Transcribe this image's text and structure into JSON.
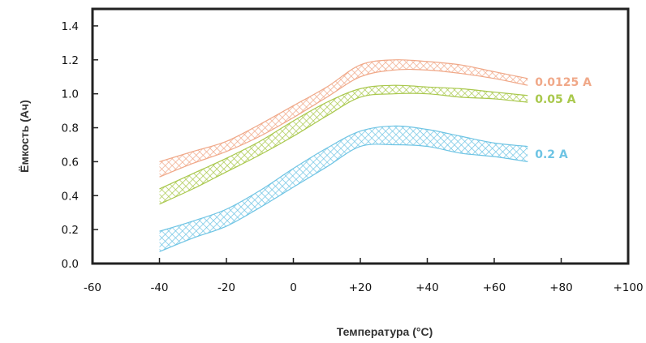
{
  "chart_data": {
    "type": "area",
    "title": "",
    "xlabel": "Температура (°C)",
    "ylabel": "Ёмкость (Ач)",
    "xlim": [
      -60,
      100
    ],
    "ylim": [
      0,
      1.5
    ],
    "x_ticks": [
      "-60",
      "-40",
      "-20",
      "0",
      "+20",
      "+40",
      "+60",
      "+80",
      "+100"
    ],
    "y_ticks": [
      "0.0",
      "0.2",
      "0.4",
      "0.6",
      "0.8",
      "1.0",
      "1.2",
      "1.4"
    ],
    "grid": false,
    "x": [
      -40,
      -30,
      -20,
      -10,
      0,
      10,
      20,
      30,
      40,
      50,
      60,
      70
    ],
    "series": [
      {
        "name": "0.0125 A",
        "color": "#f0a888",
        "lower": [
          0.51,
          0.59,
          0.66,
          0.75,
          0.86,
          0.98,
          1.1,
          1.14,
          1.14,
          1.12,
          1.09,
          1.05
        ],
        "upper": [
          0.6,
          0.66,
          0.72,
          0.82,
          0.93,
          1.04,
          1.17,
          1.2,
          1.19,
          1.17,
          1.13,
          1.09
        ]
      },
      {
        "name": "0.05 A",
        "color": "#a9c84c",
        "lower": [
          0.35,
          0.44,
          0.54,
          0.64,
          0.75,
          0.87,
          0.98,
          1.0,
          1.0,
          0.98,
          0.97,
          0.95
        ],
        "upper": [
          0.44,
          0.53,
          0.62,
          0.72,
          0.84,
          0.95,
          1.03,
          1.05,
          1.04,
          1.03,
          1.01,
          0.99
        ]
      },
      {
        "name": "0.2 A",
        "color": "#6ec4e4",
        "lower": [
          0.07,
          0.15,
          0.22,
          0.33,
          0.45,
          0.57,
          0.69,
          0.7,
          0.69,
          0.65,
          0.63,
          0.6
        ],
        "upper": [
          0.19,
          0.25,
          0.32,
          0.43,
          0.56,
          0.68,
          0.78,
          0.81,
          0.79,
          0.75,
          0.71,
          0.69
        ]
      }
    ]
  }
}
